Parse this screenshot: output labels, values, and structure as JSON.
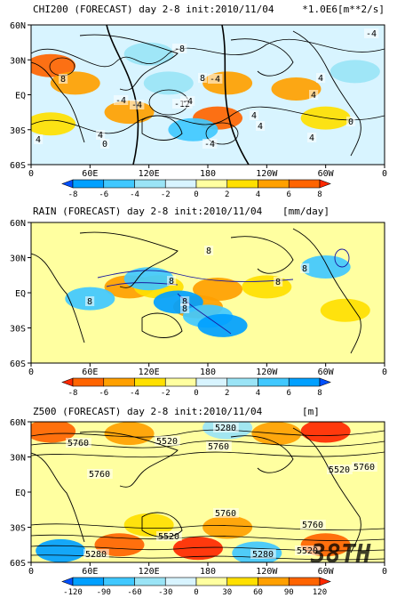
{
  "chart_data": [
    {
      "type": "heatmap",
      "title": "CHI200 (FORECAST) day 2-8 init:2010/11/04",
      "units": "*1.0E6[m**2/s]",
      "xticks": [
        "0",
        "60E",
        "120E",
        "180",
        "120W",
        "60W",
        "0"
      ],
      "yticks": [
        "60N",
        "30N",
        "EQ",
        "30S",
        "60S"
      ],
      "colorbar": {
        "levels": [
          "-8",
          "-6",
          "-4",
          "-2",
          "0",
          "2",
          "4",
          "6",
          "8"
        ],
        "colors": [
          "#0050ff",
          "#00a0ff",
          "#40c8ff",
          "#9ae4f6",
          "#d8f4ff",
          "#ffffa0",
          "#ffe000",
          "#ffa000",
          "#ff6400",
          "#ff2800"
        ]
      },
      "contour_labels": [
        "8",
        "-8",
        "-4",
        "8",
        "-4",
        "-12",
        "-4",
        "4",
        "-4",
        "4",
        "-4",
        "4",
        "0",
        "4",
        "-4",
        "4",
        "4",
        "0",
        "4"
      ],
      "cells": [
        {
          "lon": 20,
          "lat": 25,
          "value": 7
        },
        {
          "lon": 45,
          "lat": 10,
          "value": 5
        },
        {
          "lon": 20,
          "lat": -25,
          "value": 3
        },
        {
          "lon": 100,
          "lat": -15,
          "value": 5
        },
        {
          "lon": 140,
          "lat": 10,
          "value": -4
        },
        {
          "lon": 190,
          "lat": -20,
          "value": 6
        },
        {
          "lon": 200,
          "lat": 10,
          "value": 4
        },
        {
          "lon": 270,
          "lat": 5,
          "value": 5
        },
        {
          "lon": 300,
          "lat": -20,
          "value": 3
        },
        {
          "lon": 330,
          "lat": 20,
          "value": -3
        },
        {
          "lon": 165,
          "lat": -30,
          "value": -6
        },
        {
          "lon": 120,
          "lat": 35,
          "value": -3
        }
      ]
    },
    {
      "type": "heatmap",
      "title": "RAIN (FORECAST) day 2-8 init:2010/11/04",
      "units": "[mm/day]",
      "xticks": [
        "0",
        "60E",
        "120E",
        "180",
        "120W",
        "60W",
        "0"
      ],
      "yticks": [
        "60N",
        "30N",
        "EQ",
        "30S",
        "60S"
      ],
      "colorbar": {
        "levels": [
          "-8",
          "-6",
          "-4",
          "-2",
          "0",
          "2",
          "4",
          "6",
          "8"
        ],
        "colors": [
          "#ff2800",
          "#ff6400",
          "#ffa000",
          "#ffe000",
          "#ffffa0",
          "#d8f4ff",
          "#9ae4f6",
          "#40c8ff",
          "#00a0ff",
          "#0050ff"
        ]
      },
      "contour_labels": [
        "8",
        "8",
        "8",
        "8",
        "8",
        "8",
        "8"
      ],
      "cells": [
        {
          "lon": 100,
          "lat": 5,
          "value": -5
        },
        {
          "lon": 130,
          "lat": 5,
          "value": -4
        },
        {
          "lon": 170,
          "lat": -12,
          "value": -5
        },
        {
          "lon": 190,
          "lat": 3,
          "value": -6
        },
        {
          "lon": 240,
          "lat": 5,
          "value": -4
        },
        {
          "lon": 150,
          "lat": -8,
          "value": 6
        },
        {
          "lon": 180,
          "lat": -20,
          "value": 5
        },
        {
          "lon": 195,
          "lat": -28,
          "value": 7
        },
        {
          "lon": 120,
          "lat": 12,
          "value": 5
        },
        {
          "lon": 300,
          "lat": 22,
          "value": 5
        },
        {
          "lon": 60,
          "lat": -5,
          "value": 4
        },
        {
          "lon": 320,
          "lat": -15,
          "value": -3
        }
      ]
    },
    {
      "type": "heatmap",
      "title": "Z500 (FORECAST) day 2-8 init:2010/11/04",
      "units": "[m]",
      "xticks": [
        "0",
        "60E",
        "120E",
        "180",
        "120W",
        "60W",
        "0"
      ],
      "yticks": [
        "60N",
        "30N",
        "EQ",
        "30S",
        "60S"
      ],
      "colorbar": {
        "levels": [
          "-120",
          "-90",
          "-60",
          "-30",
          "0",
          "30",
          "60",
          "90",
          "120"
        ],
        "colors": [
          "#0050ff",
          "#00a0ff",
          "#40c8ff",
          "#9ae4f6",
          "#d8f4ff",
          "#ffffa0",
          "#ffe000",
          "#ffa000",
          "#ff6400",
          "#ff2800"
        ]
      },
      "contour_labels": [
        "5760",
        "5520",
        "5280",
        "5760",
        "5520",
        "5760",
        "5760",
        "5760",
        "5520",
        "5760",
        "5280",
        "5520",
        "5280"
      ],
      "cells": [
        {
          "lon": 20,
          "lat": 52,
          "value": 90
        },
        {
          "lon": 100,
          "lat": 50,
          "value": 60
        },
        {
          "lon": 300,
          "lat": 52,
          "value": 120
        },
        {
          "lon": 200,
          "lat": 55,
          "value": -60
        },
        {
          "lon": 250,
          "lat": 50,
          "value": 60
        },
        {
          "lon": 30,
          "lat": -50,
          "value": -120
        },
        {
          "lon": 90,
          "lat": -45,
          "value": 90
        },
        {
          "lon": 170,
          "lat": -48,
          "value": 120
        },
        {
          "lon": 230,
          "lat": -52,
          "value": -90
        },
        {
          "lon": 300,
          "lat": -45,
          "value": 90
        },
        {
          "lon": 120,
          "lat": -28,
          "value": 30
        },
        {
          "lon": 200,
          "lat": -30,
          "value": 60
        }
      ]
    }
  ],
  "watermark": "38TH"
}
